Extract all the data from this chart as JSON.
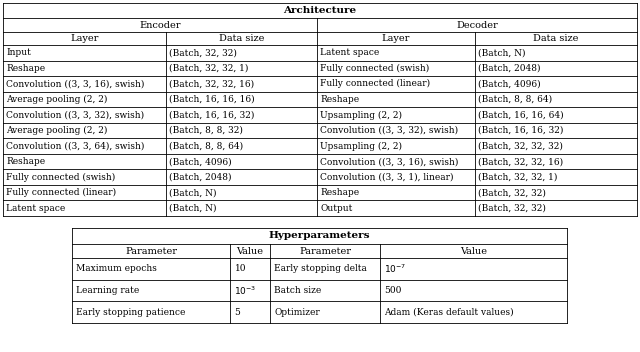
{
  "arch_title": "Architecture",
  "encoder_header": "Encoder",
  "decoder_header": "Decoder",
  "col_headers": [
    "Layer",
    "Data size",
    "Layer",
    "Data size"
  ],
  "arch_rows": [
    [
      "Input",
      "(Batch, 32, 32)",
      "Latent space",
      "(Batch, N)"
    ],
    [
      "Reshape",
      "(Batch, 32, 32, 1)",
      "Fully connected (swish)",
      "(Batch, 2048)"
    ],
    [
      "Convolution ((3, 3, 16), swish)",
      "(Batch, 32, 32, 16)",
      "Fully connected (linear)",
      "(Batch, 4096)"
    ],
    [
      "Average pooling (2, 2)",
      "(Batch, 16, 16, 16)",
      "Reshape",
      "(Batch, 8, 8, 64)"
    ],
    [
      "Convolution ((3, 3, 32), swish)",
      "(Batch, 16, 16, 32)",
      "Upsampling (2, 2)",
      "(Batch, 16, 16, 64)"
    ],
    [
      "Average pooling (2, 2)",
      "(Batch, 8, 8, 32)",
      "Convolution ((3, 3, 32), swish)",
      "(Batch, 16, 16, 32)"
    ],
    [
      "Convolution ((3, 3, 64), swish)",
      "(Batch, 8, 8, 64)",
      "Upsampling (2, 2)",
      "(Batch, 32, 32, 32)"
    ],
    [
      "Reshape",
      "(Batch, 4096)",
      "Convolution ((3, 3, 16), swish)",
      "(Batch, 32, 32, 16)"
    ],
    [
      "Fully connected (swish)",
      "(Batch, 2048)",
      "Convolution ((3, 3, 1), linear)",
      "(Batch, 32, 32, 1)"
    ],
    [
      "Fully connected (linear)",
      "(Batch, N)",
      "Reshape",
      "(Batch, 32, 32)"
    ],
    [
      "Latent space",
      "(Batch, N)",
      "Output",
      "(Batch, 32, 32)"
    ]
  ],
  "hyper_title": "Hyperparameters",
  "hyper_col_headers": [
    "Parameter",
    "Value",
    "Parameter",
    "Value"
  ],
  "hyper_rows": [
    [
      "Maximum epochs",
      "10",
      "Early stopping delta",
      "$10^{-7}$"
    ],
    [
      "Learning rate",
      "$10^{-3}$",
      "Batch size",
      "500"
    ],
    [
      "Early stopping patience",
      "5",
      "Optimizer",
      "Adam (Keras default values)"
    ]
  ],
  "bg_color": "#ffffff",
  "text_color": "#000000",
  "fig_width": 6.4,
  "fig_height": 3.52,
  "dpi": 100
}
